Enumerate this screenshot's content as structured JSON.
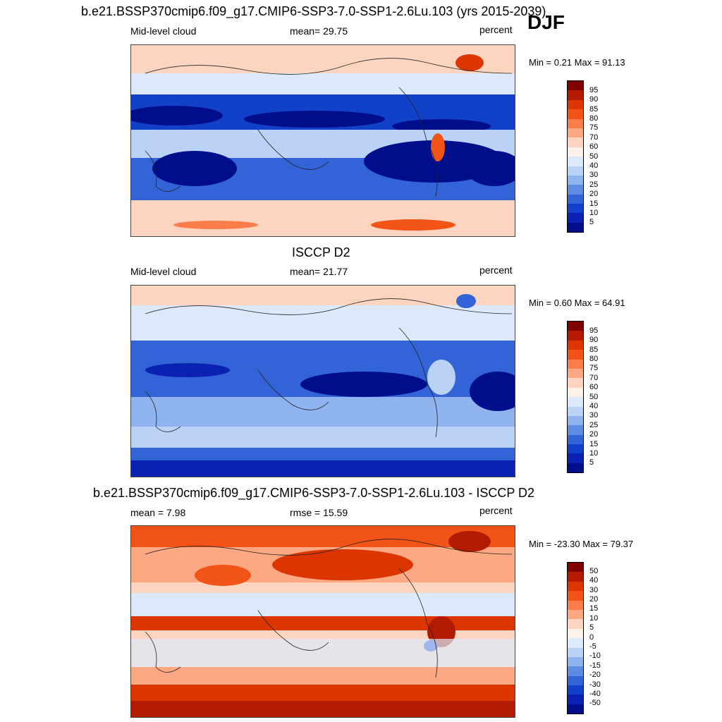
{
  "figure": {
    "season": "DJF",
    "panels": [
      {
        "title": "b.e21.BSSP370cmip6.f09_g17.CMIP6-SSP3-7.0-SSP1-2.6Lu.103 (yrs 2015-2039)",
        "left_label": "Mid-level cloud",
        "center_label": "mean=  29.75",
        "right_label": "percent",
        "minmax": "Min =   0.21 Max =  91.13",
        "colorbar_levels": [
          "95",
          "90",
          "85",
          "80",
          "75",
          "70",
          "60",
          "50",
          "40",
          "30",
          "25",
          "20",
          "15",
          "10",
          "5"
        ]
      },
      {
        "title": "ISCCP D2",
        "left_label": "Mid-level cloud",
        "center_label": "mean=  21.77",
        "right_label": "percent",
        "minmax": "Min =   0.60 Max =  64.91",
        "colorbar_levels": [
          "95",
          "90",
          "85",
          "80",
          "75",
          "70",
          "60",
          "50",
          "40",
          "30",
          "25",
          "20",
          "15",
          "10",
          "5"
        ]
      },
      {
        "title": "b.e21.BSSP370cmip6.f09_g17.CMIP6-SSP3-7.0-SSP1-2.6Lu.103 - ISCCP D2",
        "left_label": "mean =   7.98",
        "center_label": "rmse =  15.59",
        "right_label": "percent",
        "minmax": "Min = -23.30 Max =  79.37",
        "colorbar_levels": [
          "50",
          "40",
          "30",
          "20",
          "15",
          "10",
          "5",
          "0",
          "-5",
          "-10",
          "-15",
          "-20",
          "-30",
          "-40",
          "-50"
        ]
      }
    ],
    "colors": [
      "#7f0000",
      "#b31b00",
      "#dc3500",
      "#f25417",
      "#fb7d4a",
      "#fca882",
      "#fdd4bf",
      "#fdf2ea",
      "#dce9fb",
      "#b9d2f6",
      "#8fb3ee",
      "#5e8ce3",
      "#3264d8",
      "#1140c9",
      "#0a21b2",
      "#000e8c"
    ]
  }
}
